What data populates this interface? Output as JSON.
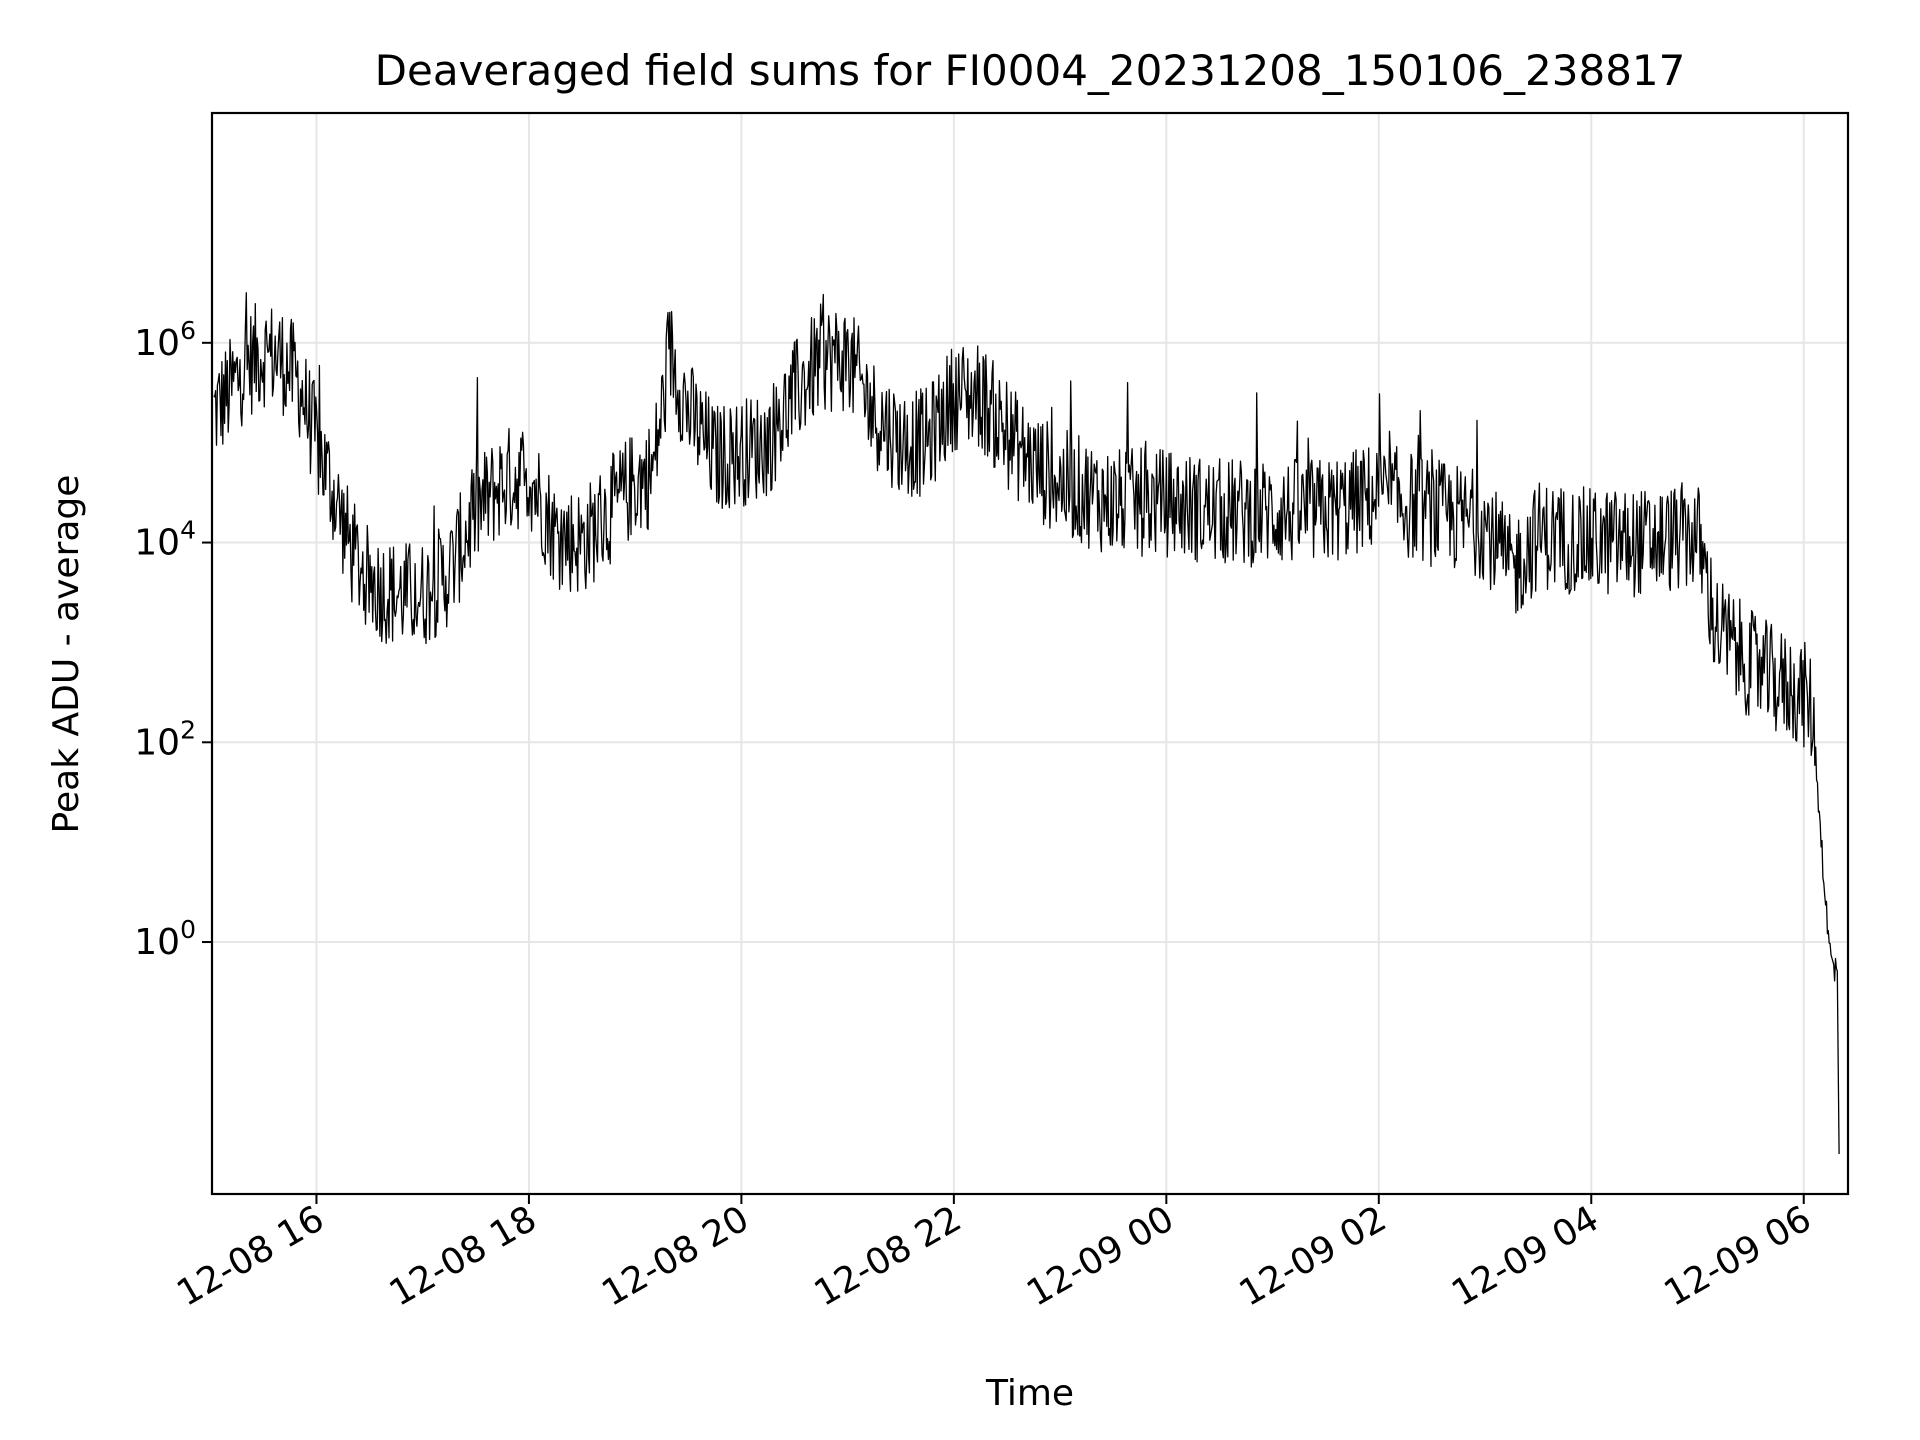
{
  "chart_data": {
    "type": "line",
    "title": "Deaveraged field sums for FI0004_20231208_150106_238817",
    "xlabel": "Time",
    "ylabel": "Peak ADU - average",
    "yscale": "log",
    "grid": true,
    "xlim": [
      "2023-12-08 15:01",
      "2023-12-09 06:25"
    ],
    "ylim": [
      0.003,
      200000000
    ],
    "x_ticks": [
      {
        "value": "2023-12-08 16:00",
        "label": "12-08 16"
      },
      {
        "value": "2023-12-08 18:00",
        "label": "12-08 18"
      },
      {
        "value": "2023-12-08 20:00",
        "label": "12-08 20"
      },
      {
        "value": "2023-12-08 22:00",
        "label": "12-08 22"
      },
      {
        "value": "2023-12-09 00:00",
        "label": "12-09 00"
      },
      {
        "value": "2023-12-09 02:00",
        "label": "12-09 02"
      },
      {
        "value": "2023-12-09 04:00",
        "label": "12-09 04"
      },
      {
        "value": "2023-12-09 06:00",
        "label": "12-09 06"
      }
    ],
    "y_ticks": [
      {
        "value": 1,
        "base": "10",
        "exp": "0"
      },
      {
        "value": 100,
        "base": "10",
        "exp": "2"
      },
      {
        "value": 10000,
        "base": "10",
        "exp": "4"
      },
      {
        "value": 1000000,
        "base": "10",
        "exp": "6"
      }
    ],
    "series_color": "#000000",
    "series": [
      {
        "x": [
          "2023-12-08 15:02",
          "2023-12-08 15:10",
          "2023-12-08 15:20",
          "2023-12-08 15:30",
          "2023-12-08 15:40",
          "2023-12-08 15:50",
          "2023-12-08 16:00",
          "2023-12-08 16:10",
          "2023-12-08 16:20",
          "2023-12-08 16:30",
          "2023-12-08 16:45",
          "2023-12-08 17:00",
          "2023-12-08 17:15",
          "2023-12-08 17:30",
          "2023-12-08 17:45",
          "2023-12-08 18:00",
          "2023-12-08 18:15",
          "2023-12-08 18:30",
          "2023-12-08 18:45",
          "2023-12-08 19:00",
          "2023-12-08 19:10",
          "2023-12-08 19:20",
          "2023-12-08 19:30",
          "2023-12-08 19:45",
          "2023-12-08 20:00",
          "2023-12-08 20:15",
          "2023-12-08 20:30",
          "2023-12-08 20:45",
          "2023-12-08 21:00",
          "2023-12-08 21:15",
          "2023-12-08 21:30",
          "2023-12-08 21:45",
          "2023-12-08 22:00",
          "2023-12-08 22:15",
          "2023-12-08 22:30",
          "2023-12-08 22:45",
          "2023-12-08 23:00",
          "2023-12-08 23:30",
          "2023-12-09 00:00",
          "2023-12-09 00:30",
          "2023-12-09 01:00",
          "2023-12-09 01:30",
          "2023-12-09 02:00",
          "2023-12-09 02:30",
          "2023-12-09 03:00",
          "2023-12-09 03:15",
          "2023-12-09 03:30",
          "2023-12-09 04:00",
          "2023-12-09 04:30",
          "2023-12-09 05:00",
          "2023-12-09 05:10",
          "2023-12-09 05:20",
          "2023-12-09 05:30",
          "2023-12-09 05:45",
          "2023-12-09 06:00",
          "2023-12-09 06:05",
          "2023-12-09 06:10",
          "2023-12-09 06:14",
          "2023-12-09 06:17",
          "2023-12-09 06:19",
          "2023-12-09 06:20"
        ],
        "y": [
          200000,
          300000,
          600000,
          800000,
          700000,
          400000,
          100000,
          30000,
          8000,
          4000,
          3000,
          3000,
          5000,
          20000,
          40000,
          50000,
          12000,
          10000,
          20000,
          40000,
          50000,
          800000,
          200000,
          70000,
          80000,
          100000,
          300000,
          700000,
          700000,
          200000,
          100000,
          100000,
          300000,
          300000,
          120000,
          60000,
          40000,
          25000,
          25000,
          20000,
          20000,
          20000,
          30000,
          20000,
          15000,
          5000,
          12000,
          10000,
          10000,
          12000,
          1500,
          900,
          600,
          400,
          300,
          200,
          10,
          1,
          0.5,
          0.5,
          0.01
        ],
        "noise_decades": 0.55
      }
    ]
  }
}
